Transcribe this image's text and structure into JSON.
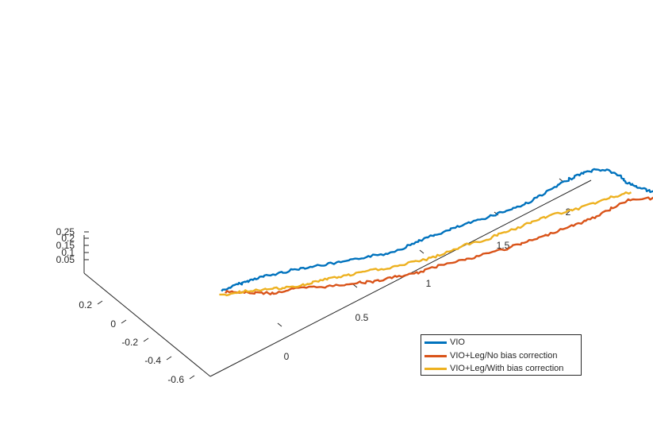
{
  "chart_data": {
    "type": "line",
    "title": "",
    "xlabel": "",
    "ylabel": "",
    "zlabel": "",
    "x_ticks": [
      "0",
      "0.5",
      "1",
      "1.5",
      "2"
    ],
    "y_ticks": [
      "0.2",
      "0",
      "-0.2",
      "-0.4",
      "-0.6"
    ],
    "z_ticks": [
      "0.25",
      "0.2",
      "0.15",
      "0.1",
      "0.05"
    ],
    "xlim": [
      -0.2,
      2.4
    ],
    "ylim": [
      -0.7,
      0.35
    ],
    "zlim": [
      0.02,
      0.27
    ],
    "grid": false,
    "legend_position": "bottom-right",
    "series": [
      {
        "name": "VIO",
        "color": "#0072BD",
        "x": [
          -0.08,
          0.0,
          0.05,
          0.1,
          0.15,
          0.22,
          0.3,
          0.4,
          0.5,
          0.6,
          0.7,
          0.8,
          0.9,
          1.0,
          1.1,
          1.2,
          1.3,
          1.4,
          1.5,
          1.6,
          1.7,
          1.78,
          1.85,
          1.92,
          1.98,
          2.03,
          2.05,
          2.1,
          2.15,
          2.2
        ],
        "y": [
          0.3,
          0.28,
          0.25,
          0.22,
          0.18,
          0.15,
          0.12,
          0.08,
          0.05,
          0.03,
          0.0,
          -0.02,
          -0.03,
          -0.05,
          -0.06,
          -0.08,
          -0.1,
          -0.12,
          -0.14,
          -0.15,
          -0.16,
          -0.17,
          -0.18,
          -0.2,
          -0.22,
          -0.25,
          -0.28,
          -0.3,
          -0.33,
          -0.35
        ],
        "z": [
          0.05,
          0.07,
          0.1,
          0.13,
          0.16,
          0.18,
          0.19,
          0.2,
          0.2,
          0.2,
          0.2,
          0.21,
          0.22,
          0.23,
          0.23,
          0.24,
          0.25,
          0.26,
          0.27,
          0.29,
          0.31,
          0.33,
          0.34,
          0.35,
          0.34,
          0.31,
          0.28,
          0.25,
          0.23,
          0.22
        ]
      },
      {
        "name": "VIO+Leg/No bias correction",
        "color": "#D95319",
        "x": [
          -0.05,
          0.0,
          0.05,
          0.1,
          0.2,
          0.3,
          0.4,
          0.5,
          0.6,
          0.7,
          0.8,
          0.9,
          1.0,
          1.1,
          1.2,
          1.3,
          1.4,
          1.5,
          1.6,
          1.7,
          1.8,
          1.9,
          2.0,
          2.1,
          2.2
        ],
        "y": [
          0.3,
          0.25,
          0.2,
          0.15,
          0.12,
          0.08,
          0.05,
          0.02,
          -0.02,
          -0.05,
          -0.08,
          -0.1,
          -0.12,
          -0.15,
          -0.17,
          -0.2,
          -0.22,
          -0.25,
          -0.27,
          -0.3,
          -0.32,
          -0.33,
          -0.35,
          -0.4,
          -0.45
        ],
        "z": [
          0.03,
          0.05,
          0.07,
          0.09,
          0.1,
          0.1,
          0.09,
          0.09,
          0.09,
          0.1,
          0.1,
          0.11,
          0.12,
          0.12,
          0.13,
          0.14,
          0.15,
          0.17,
          0.19,
          0.21,
          0.23,
          0.25,
          0.27,
          0.27,
          0.25
        ]
      },
      {
        "name": "VIO+Leg/With bias correction",
        "color": "#EDB120",
        "x": [
          -0.1,
          -0.02,
          0.05,
          0.12,
          0.2,
          0.3,
          0.4,
          0.5,
          0.6,
          0.7,
          0.8,
          0.9,
          1.0,
          1.1,
          1.2,
          1.3,
          1.4,
          1.5,
          1.6,
          1.7,
          1.8,
          1.9,
          2.0
        ],
        "y": [
          0.3,
          0.25,
          0.2,
          0.15,
          0.12,
          0.1,
          0.08,
          0.05,
          0.02,
          -0.02,
          -0.05,
          -0.08,
          -0.1,
          -0.12,
          -0.15,
          -0.17,
          -0.2,
          -0.22,
          -0.25,
          -0.28,
          -0.3,
          -0.32,
          -0.34
        ],
        "z": [
          0.03,
          0.06,
          0.09,
          0.11,
          0.11,
          0.11,
          0.11,
          0.11,
          0.12,
          0.13,
          0.14,
          0.15,
          0.16,
          0.18,
          0.19,
          0.21,
          0.23,
          0.25,
          0.27,
          0.28,
          0.29,
          0.3,
          0.3
        ]
      }
    ]
  }
}
